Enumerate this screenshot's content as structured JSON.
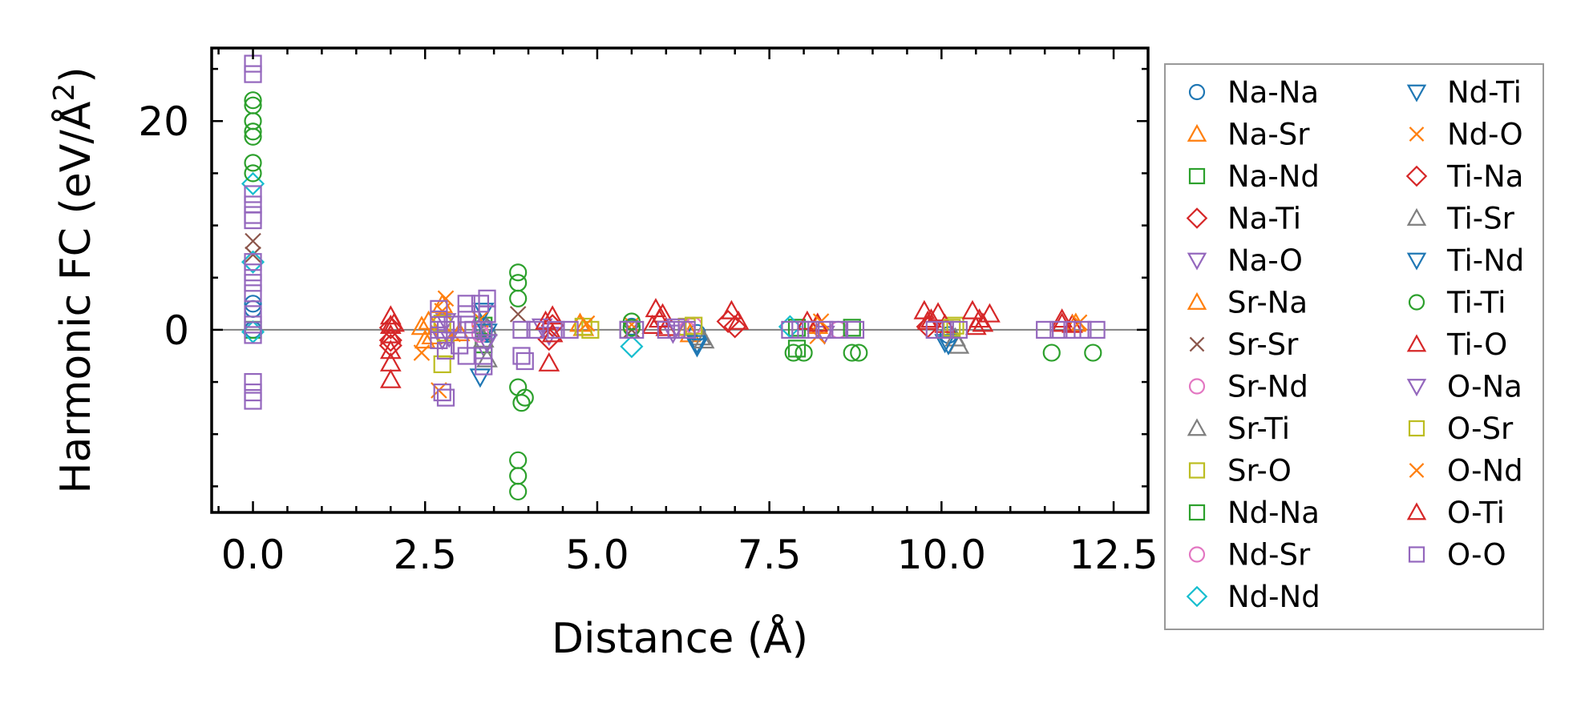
{
  "chart_data": {
    "type": "scatter",
    "title": "",
    "xlabel": "Distance (Å)",
    "ylabel_main": "Harmonic FC (eV/Å",
    "ylabel_sup": "2",
    "ylabel_close": ")",
    "xlim": [
      -0.6,
      13.0
    ],
    "ylim": [
      -17.5,
      27.0
    ],
    "xticks": [
      0.0,
      2.5,
      5.0,
      7.5,
      10.0,
      12.5
    ],
    "xtick_labels": [
      "0.0",
      "2.5",
      "5.0",
      "7.5",
      "10.0",
      "12.5"
    ],
    "xminor_step": 0.5,
    "yticks": [
      0,
      20
    ],
    "ytick_labels": [
      "0",
      "20"
    ],
    "yminor": [
      -15,
      -10,
      -5,
      5,
      10,
      15,
      25
    ],
    "zero_line": true,
    "legend_position": "right, outside plot",
    "series": [
      {
        "name": "Na-Na",
        "marker": "circle",
        "color": "#1f77b4",
        "points": [
          [
            0,
            0
          ],
          [
            0,
            2
          ],
          [
            0,
            2.5
          ],
          [
            3.35,
            0.3
          ],
          [
            3.4,
            -0.4
          ],
          [
            5.5,
            0.3
          ],
          [
            6.45,
            -0.3
          ],
          [
            10.1,
            -0.5
          ]
        ]
      },
      {
        "name": "Na-Sr",
        "marker": "triangle-up",
        "color": "#ff7f0e",
        "points": [
          [
            2.45,
            0.3
          ],
          [
            2.6,
            -0.6
          ],
          [
            2.75,
            2.4
          ],
          [
            4.8,
            0.2
          ],
          [
            6.3,
            0.2
          ],
          [
            8.2,
            0.4
          ],
          [
            11.95,
            0.6
          ]
        ]
      },
      {
        "name": "Na-Nd",
        "marker": "square",
        "color": "#2ca02c",
        "points": [
          [
            0,
            0
          ],
          [
            3.35,
            -1.4
          ],
          [
            5.45,
            0
          ],
          [
            7.9,
            -1.8
          ],
          [
            10.05,
            0
          ]
        ]
      },
      {
        "name": "Na-Ti",
        "marker": "diamond",
        "color": "#d62728",
        "points": [
          [
            2.0,
            0.2
          ],
          [
            2.0,
            -1.5
          ],
          [
            4.35,
            0.4
          ],
          [
            7.0,
            0.3
          ],
          [
            9.8,
            0.3
          ]
        ]
      },
      {
        "name": "Na-O",
        "marker": "triangle-down",
        "color": "#9467bd",
        "points": [
          [
            2.75,
            -0.9
          ],
          [
            3.35,
            -1.6
          ],
          [
            4.3,
            -0.5
          ],
          [
            6.1,
            -0.3
          ],
          [
            8.3,
            -0.4
          ]
        ]
      },
      {
        "name": "Sr-Na",
        "marker": "triangle-up",
        "color": "#ff7f0e",
        "points": [
          [
            2.5,
            -1.0
          ],
          [
            2.55,
            0.8
          ],
          [
            3.0,
            -0.3
          ],
          [
            4.75,
            0.6
          ],
          [
            6.35,
            -0.4
          ]
        ]
      },
      {
        "name": "Sr-Sr",
        "marker": "x",
        "color": "#8c564b",
        "points": [
          [
            0,
            8.5
          ],
          [
            0,
            7.2
          ],
          [
            3.85,
            1.5
          ],
          [
            5.5,
            0
          ]
        ]
      },
      {
        "name": "Sr-Nd",
        "marker": "circle",
        "color": "#e377c2",
        "points": [
          [
            3.3,
            0.5
          ],
          [
            6.3,
            0
          ],
          [
            8.5,
            0
          ]
        ]
      },
      {
        "name": "Sr-Ti",
        "marker": "triangle-up",
        "color": "#7f7f7f",
        "points": [
          [
            3.35,
            -0.9
          ],
          [
            3.4,
            -2.8
          ],
          [
            6.5,
            -0.7
          ],
          [
            10.2,
            -0.8
          ]
        ]
      },
      {
        "name": "Sr-O",
        "marker": "square",
        "color": "#bcbd22",
        "points": [
          [
            2.75,
            -3.3
          ],
          [
            2.8,
            -1.8
          ],
          [
            4.8,
            0.3
          ],
          [
            6.3,
            0.3
          ],
          [
            10.2,
            0.4
          ]
        ]
      },
      {
        "name": "Nd-Na",
        "marker": "square",
        "color": "#2ca02c",
        "points": [
          [
            3.35,
            0.4
          ],
          [
            7.9,
            0.2
          ],
          [
            8.7,
            0.2
          ]
        ]
      },
      {
        "name": "Nd-Sr",
        "marker": "circle",
        "color": "#e377c2",
        "points": [
          [
            3.3,
            -0.4
          ],
          [
            6.4,
            0.4
          ]
        ]
      },
      {
        "name": "Nd-Nd",
        "marker": "diamond",
        "color": "#17becf",
        "points": [
          [
            0,
            14
          ],
          [
            0,
            6.5
          ],
          [
            0,
            -0.2
          ],
          [
            5.5,
            -1.6
          ],
          [
            7.8,
            0.3
          ]
        ]
      },
      {
        "name": "Nd-Ti",
        "marker": "triangle-down",
        "color": "#1f77b4",
        "points": [
          [
            3.35,
            1.8
          ],
          [
            3.3,
            -4.5
          ],
          [
            6.45,
            -1.3
          ],
          [
            10.05,
            -1.2
          ]
        ]
      },
      {
        "name": "Nd-O",
        "marker": "x",
        "color": "#ff7f0e",
        "points": [
          [
            2.45,
            -2.2
          ],
          [
            2.7,
            -5.8
          ],
          [
            2.8,
            3.0
          ],
          [
            3.3,
            1.0
          ],
          [
            5.5,
            0.5
          ],
          [
            8.2,
            -0.6
          ]
        ]
      },
      {
        "name": "Ti-Na",
        "marker": "diamond",
        "color": "#d62728",
        "points": [
          [
            2.0,
            -1.0
          ],
          [
            4.3,
            -0.9
          ],
          [
            6.9,
            0.8
          ]
        ]
      },
      {
        "name": "Ti-Sr",
        "marker": "triangle-up",
        "color": "#7f7f7f",
        "points": [
          [
            3.4,
            0.2
          ],
          [
            6.55,
            -1.0
          ],
          [
            10.25,
            -1.5
          ]
        ]
      },
      {
        "name": "Ti-Nd",
        "marker": "triangle-down",
        "color": "#1f77b4",
        "points": [
          [
            3.4,
            -0.2
          ],
          [
            6.45,
            -1.6
          ],
          [
            10.1,
            -1.4
          ]
        ]
      },
      {
        "name": "Ti-Ti",
        "marker": "circle",
        "color": "#2ca02c",
        "points": [
          [
            0,
            22
          ],
          [
            0,
            20
          ],
          [
            0,
            18.5
          ],
          [
            0,
            16
          ],
          [
            0,
            15
          ],
          [
            0,
            19
          ],
          [
            0,
            21.5
          ],
          [
            3.85,
            5.5
          ],
          [
            3.85,
            4.5
          ],
          [
            3.85,
            3.0
          ],
          [
            3.85,
            -5.5
          ],
          [
            3.9,
            -7.0
          ],
          [
            3.95,
            -6.5
          ],
          [
            3.85,
            -12.5
          ],
          [
            3.85,
            -14
          ],
          [
            3.85,
            -15.5
          ],
          [
            5.5,
            0.8
          ],
          [
            5.5,
            0.2
          ],
          [
            7.85,
            -2.2
          ],
          [
            8.0,
            -2.2
          ],
          [
            8.7,
            -2.2
          ],
          [
            8.8,
            -2.2
          ],
          [
            11.6,
            -2.2
          ],
          [
            12.2,
            -2.2
          ]
        ]
      },
      {
        "name": "Ti-O",
        "marker": "triangle-up",
        "color": "#d62728",
        "points": [
          [
            2.0,
            1.3
          ],
          [
            2.0,
            0.4
          ],
          [
            2.0,
            -0.5
          ],
          [
            2.0,
            -2.0
          ],
          [
            2.0,
            -3.2
          ],
          [
            2.0,
            -4.8
          ],
          [
            4.35,
            1.3
          ],
          [
            4.35,
            -0.4
          ],
          [
            4.3,
            -3.2
          ],
          [
            5.85,
            2.0
          ],
          [
            5.95,
            1.5
          ],
          [
            6.0,
            0.2
          ],
          [
            5.8,
            0.4
          ],
          [
            6.95,
            1.8
          ],
          [
            7.05,
            0.8
          ],
          [
            8.05,
            0.8
          ],
          [
            8.2,
            0.6
          ],
          [
            9.75,
            1.8
          ],
          [
            9.85,
            1.0
          ],
          [
            9.95,
            1.6
          ],
          [
            10.05,
            0.5
          ],
          [
            10.45,
            1.8
          ],
          [
            10.55,
            1.0
          ],
          [
            10.7,
            1.5
          ],
          [
            10.5,
            0.3
          ],
          [
            11.75,
            0.6
          ],
          [
            11.9,
            0.5
          ]
        ]
      },
      {
        "name": "O-Na",
        "marker": "triangle-down",
        "color": "#9467bd",
        "points": [
          [
            2.8,
            0.8
          ],
          [
            2.85,
            -0.7
          ],
          [
            3.4,
            -1.2
          ],
          [
            4.2,
            0.3
          ],
          [
            6.15,
            0.3
          ]
        ]
      },
      {
        "name": "O-Sr",
        "marker": "square",
        "color": "#bcbd22",
        "points": [
          [
            2.75,
            0.6
          ],
          [
            4.9,
            0
          ],
          [
            6.4,
            0.4
          ],
          [
            10.15,
            0.2
          ]
        ]
      },
      {
        "name": "O-Nd",
        "marker": "x",
        "color": "#ff7f0e",
        "points": [
          [
            2.75,
            1.8
          ],
          [
            2.9,
            -0.4
          ],
          [
            4.85,
            0.6
          ],
          [
            8.25,
            0.8
          ],
          [
            12.0,
            0.7
          ]
        ]
      },
      {
        "name": "O-Ti",
        "marker": "triangle-up",
        "color": "#d62728",
        "points": [
          [
            2.05,
            0.6
          ],
          [
            4.25,
            0.8
          ],
          [
            5.9,
            1.0
          ],
          [
            9.8,
            0.8
          ],
          [
            10.6,
            0.6
          ],
          [
            11.75,
            1.0
          ]
        ]
      },
      {
        "name": "O-O",
        "marker": "square",
        "color": "#9467bd",
        "points": [
          [
            0,
            25.5
          ],
          [
            0,
            24.5
          ],
          [
            0,
            13
          ],
          [
            0,
            12
          ],
          [
            0,
            11
          ],
          [
            0,
            10.5
          ],
          [
            0,
            6.5
          ],
          [
            0,
            5.5
          ],
          [
            0,
            4.5
          ],
          [
            0,
            3.5
          ],
          [
            0,
            1.5
          ],
          [
            0,
            0.5
          ],
          [
            0,
            -0.5
          ],
          [
            0,
            -5
          ],
          [
            0,
            -6
          ],
          [
            0,
            -6.8
          ],
          [
            2.7,
            0
          ],
          [
            2.7,
            1.0
          ],
          [
            2.7,
            -1.0
          ],
          [
            2.7,
            2.0
          ],
          [
            2.8,
            0
          ],
          [
            2.8,
            -2.0
          ],
          [
            2.75,
            -6.0
          ],
          [
            2.8,
            -6.5
          ],
          [
            2.9,
            0.5
          ],
          [
            3.1,
            0.5
          ],
          [
            3.1,
            1.5
          ],
          [
            3.1,
            2.5
          ],
          [
            3.0,
            -1.5
          ],
          [
            3.1,
            -2.5
          ],
          [
            3.2,
            0
          ],
          [
            3.35,
            0
          ],
          [
            3.4,
            1.5
          ],
          [
            3.4,
            3.0
          ],
          [
            3.3,
            2.5
          ],
          [
            3.35,
            -2.5
          ],
          [
            3.35,
            -3.5
          ],
          [
            3.9,
            0
          ],
          [
            3.9,
            -2.5
          ],
          [
            3.95,
            -3.0
          ],
          [
            4.1,
            0
          ],
          [
            4.4,
            0
          ],
          [
            4.6,
            0
          ],
          [
            5.45,
            0
          ],
          [
            5.55,
            0
          ],
          [
            6.0,
            0
          ],
          [
            6.15,
            0
          ],
          [
            6.3,
            0
          ],
          [
            7.8,
            0
          ],
          [
            7.95,
            0
          ],
          [
            8.1,
            0
          ],
          [
            8.3,
            0
          ],
          [
            8.5,
            0
          ],
          [
            8.75,
            0
          ],
          [
            9.9,
            0
          ],
          [
            10.05,
            0
          ],
          [
            10.25,
            0
          ],
          [
            11.5,
            0
          ],
          [
            11.7,
            0
          ],
          [
            11.9,
            0
          ],
          [
            12.05,
            0
          ],
          [
            12.25,
            0
          ]
        ]
      }
    ]
  }
}
